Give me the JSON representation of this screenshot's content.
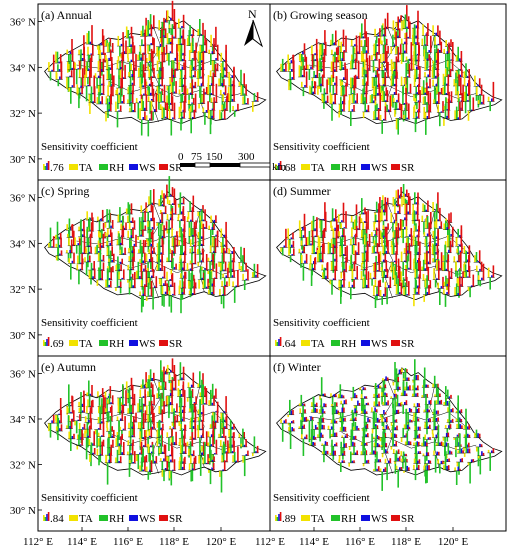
{
  "panels": [
    {
      "label": "(a) Annual",
      "coef": ".76"
    },
    {
      "label": "(b) Growing season",
      "coef": ".68"
    },
    {
      "label": "(c) Spring",
      "coef": ".69"
    },
    {
      "label": "(d) Summer",
      "coef": ".64"
    },
    {
      "label": "(e) Autumn",
      "coef": ".84"
    },
    {
      "label": "(f) Winter",
      "coef": ".89"
    }
  ],
  "legend": {
    "title": "Sensitivity coefficient",
    "items": [
      {
        "label": "TA",
        "color": "#f2e200"
      },
      {
        "label": "RH",
        "color": "#22c22a"
      },
      {
        "label": "WS",
        "color": "#1010e0"
      },
      {
        "label": "SR",
        "color": "#e01010"
      }
    ]
  },
  "lat_ticks": [
    "36° N",
    "34° N",
    "32° N",
    "30° N"
  ],
  "lon_ticks": [
    "112° E",
    "114° E",
    "116° E",
    "118° E",
    "120° E"
  ],
  "north_arrow": "N",
  "scalebar": {
    "labels": [
      "0",
      "75",
      "150",
      "300"
    ],
    "unit": "km"
  },
  "colors": {
    "TA": "#f2e200",
    "RH": "#22c22a",
    "WS": "#1010e0",
    "SR": "#e01010"
  },
  "station_dominance": {
    "annual": "mixed",
    "spring": "RH",
    "summer": "mixed",
    "winter": "RH"
  }
}
